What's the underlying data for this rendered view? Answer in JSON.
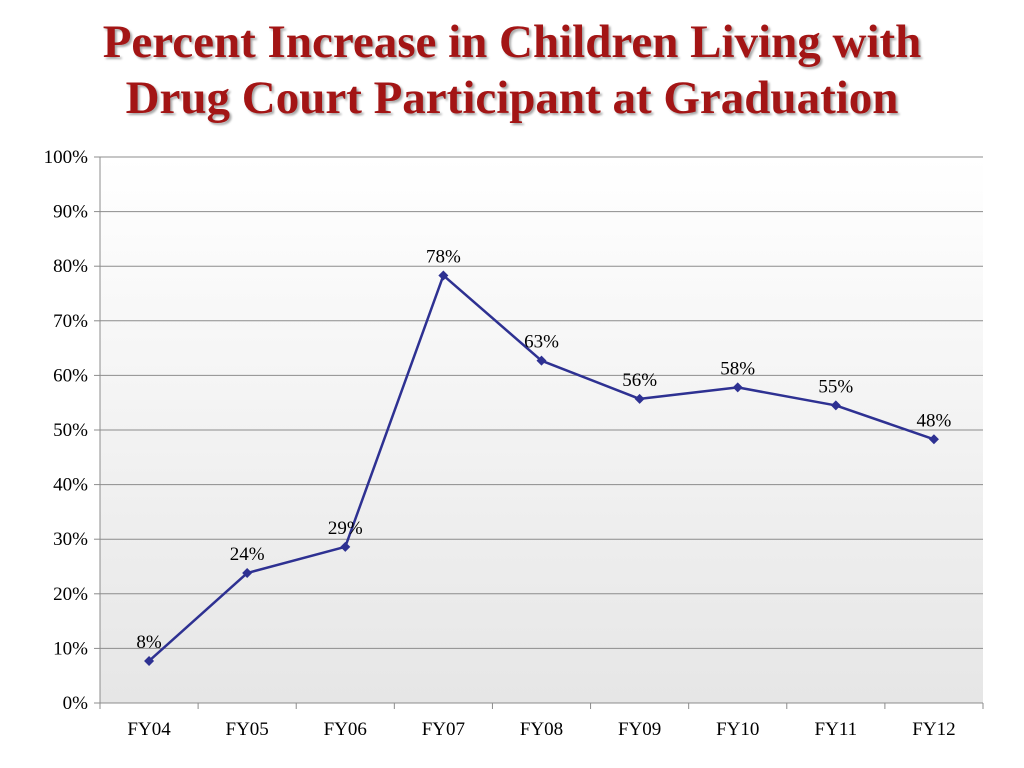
{
  "title": {
    "line1": "Percent Increase in Children Living with",
    "line2": "Drug Court Participant at Graduation"
  },
  "chart_data": {
    "type": "line",
    "title": "Percent Increase in Children Living with Drug Court Participant at Graduation",
    "categories": [
      "FY04",
      "FY05",
      "FY06",
      "FY07",
      "FY08",
      "FY09",
      "FY10",
      "FY11",
      "FY12"
    ],
    "series": [
      {
        "values": [
          7.7,
          23.8,
          28.6,
          78.3,
          62.7,
          55.7,
          57.8,
          54.5,
          48.3
        ],
        "labels": [
          "8%",
          "24%",
          "29%",
          "78%",
          "63%",
          "56%",
          "58%",
          "55%",
          "48%"
        ],
        "color": "#2e3192"
      }
    ],
    "y_ticks": [
      "0%",
      "10%",
      "20%",
      "30%",
      "40%",
      "50%",
      "60%",
      "70%",
      "80%",
      "90%",
      "100%"
    ],
    "ylim": [
      0,
      100
    ],
    "grid": true,
    "legend": "none",
    "marker": "diamond"
  }
}
